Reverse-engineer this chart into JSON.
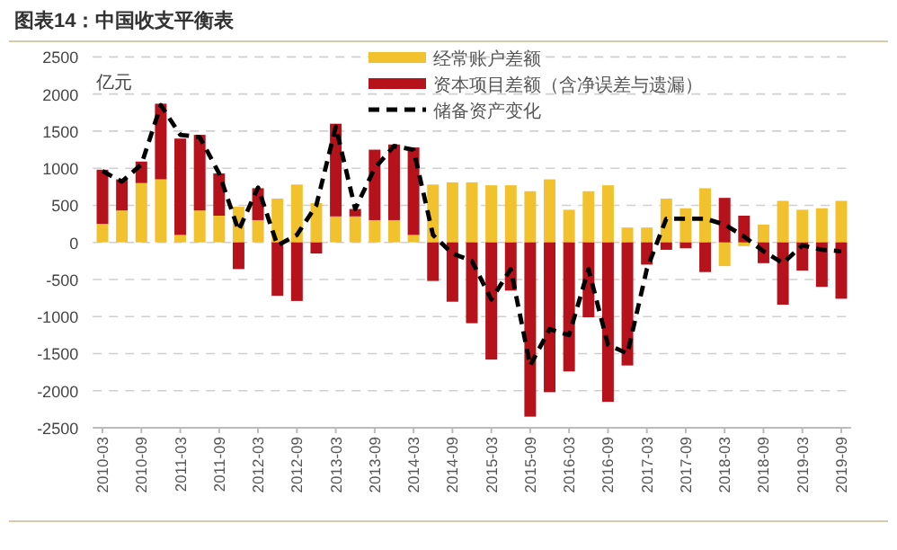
{
  "chart_data": {
    "type": "bar",
    "title": "图表14：中国收支平衡表",
    "ylabel": "亿元",
    "stacked": true,
    "grid": "y",
    "legend": "top",
    "ylim": [
      -2500,
      2500
    ],
    "yticks": [
      -2500,
      -2000,
      -1500,
      -1000,
      -500,
      0,
      500,
      1000,
      1500,
      2000,
      2500
    ],
    "categories": [
      "2010-03",
      null,
      "2010-09",
      null,
      "2011-03",
      null,
      "2011-09",
      null,
      "2012-03",
      null,
      "2012-09",
      null,
      "2013-03",
      null,
      "2013-09",
      null,
      "2014-03",
      null,
      "2014-09",
      null,
      "2015-03",
      null,
      "2015-09",
      null,
      "2016-03",
      null,
      "2016-09",
      null,
      "2017-03",
      null,
      "2017-09",
      null,
      "2018-03",
      null,
      "2018-09",
      null,
      "2019-03",
      null,
      "2019-09"
    ],
    "series": [
      {
        "name": "经常账户差额",
        "color": "#f2c12e",
        "values": [
          250,
          430,
          800,
          850,
          100,
          430,
          360,
          480,
          300,
          590,
          780,
          530,
          350,
          350,
          300,
          300,
          100,
          780,
          810,
          810,
          770,
          770,
          690,
          850,
          440,
          690,
          770,
          200,
          200,
          590,
          460,
          730,
          -320,
          -50,
          240,
          560,
          440,
          460,
          560
        ]
      },
      {
        "name": "资本项目差额（含净误差与遗漏）",
        "color": "#b5121b",
        "values": [
          730,
          420,
          290,
          1020,
          1300,
          1020,
          570,
          -360,
          430,
          -720,
          -790,
          -150,
          1250,
          100,
          950,
          1020,
          1180,
          -520,
          -800,
          -1090,
          -1580,
          -650,
          -2350,
          -2020,
          -1740,
          -1010,
          -2150,
          -1660,
          -300,
          -100,
          -80,
          -400,
          600,
          360,
          -280,
          -840,
          -380,
          -600,
          -760
        ]
      },
      {
        "name": "储备资产变化",
        "type": "line",
        "line_style": "dashed",
        "color": "#000000",
        "values": [
          960,
          820,
          1050,
          1850,
          1450,
          1420,
          930,
          160,
          740,
          -40,
          100,
          500,
          1560,
          450,
          1000,
          1300,
          1250,
          100,
          -150,
          -250,
          -770,
          -360,
          -1660,
          -1170,
          -1250,
          -360,
          -1380,
          -1500,
          -360,
          320,
          320,
          320,
          240,
          80,
          -120,
          -280,
          -40,
          -100,
          -120
        ]
      }
    ]
  }
}
